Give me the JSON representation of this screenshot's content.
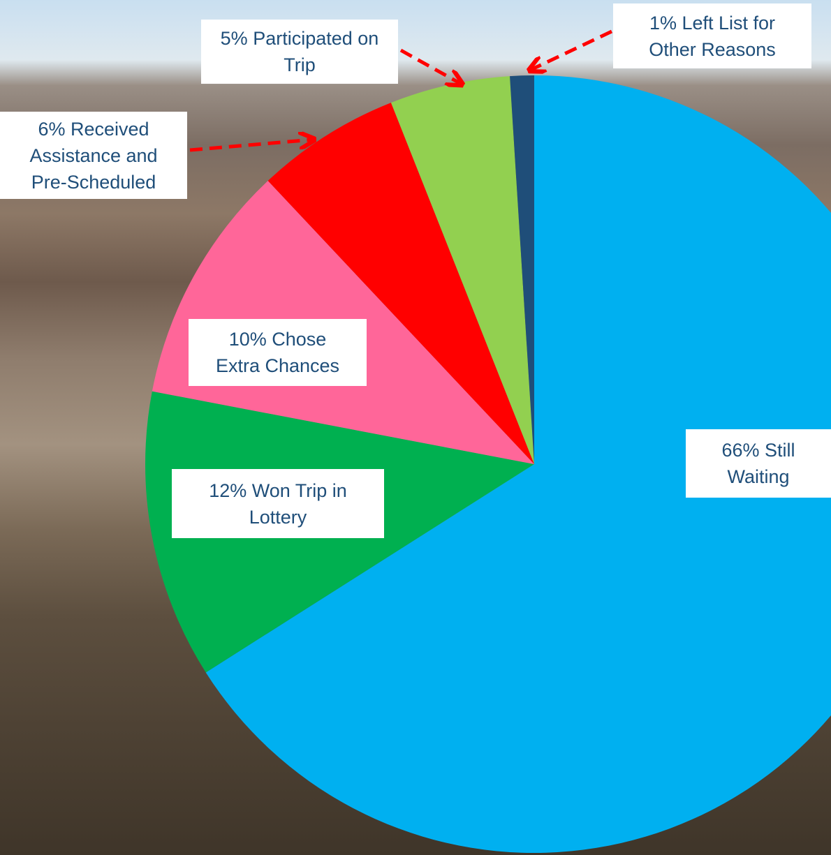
{
  "chart_data": {
    "type": "pie",
    "categories": [
      "Still Waiting",
      "Won Trip in Lottery",
      "Chose Extra Chances",
      "Received Assistance and Pre-Scheduled",
      "Participated on Trip",
      "Left List for Other Reasons"
    ],
    "values": [
      66,
      12,
      10,
      6,
      5,
      1
    ],
    "value_labels": [
      "66%",
      "12%",
      "10%",
      "6%",
      "5%",
      "1%"
    ],
    "colors": [
      "#00b0f0",
      "#00b050",
      "#ff6699",
      "#ff0000",
      "#92d050",
      "#1f4e79"
    ]
  }
}
